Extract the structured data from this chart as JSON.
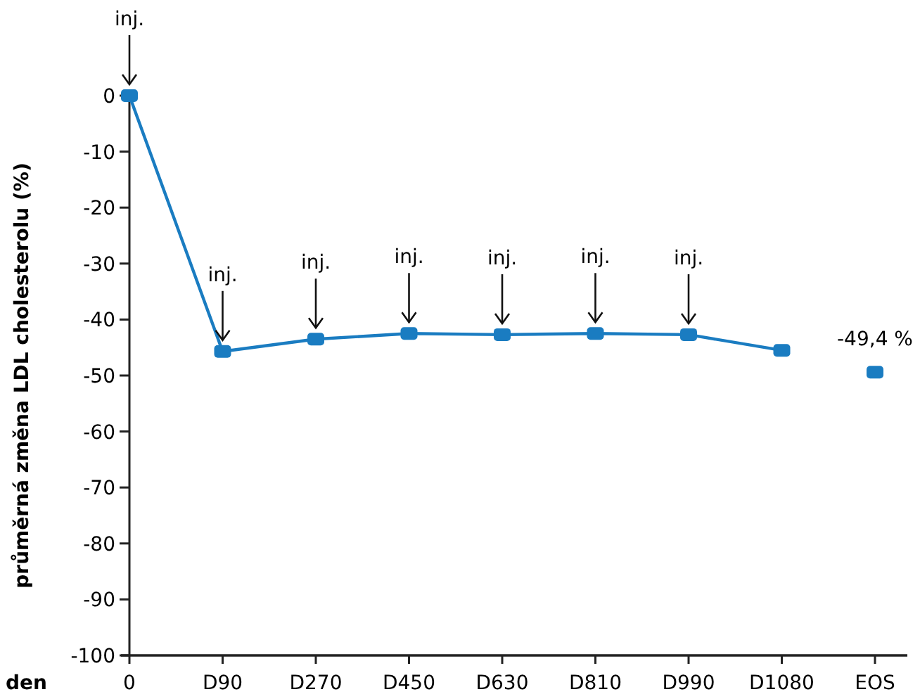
{
  "chart_data": {
    "type": "line",
    "xlabel": "den",
    "ylabel": "průměrná změna LDL cholesterolu (%)",
    "categories": [
      "0",
      "D90",
      "D270",
      "D450",
      "D630",
      "D810",
      "D990",
      "D1080",
      "EOS"
    ],
    "series": [
      {
        "color": "#1a7cc1",
        "values": [
          0,
          -45.7,
          -43.5,
          -42.5,
          -42.7,
          -42.5,
          -42.7,
          -45.5,
          null
        ]
      },
      {
        "type": "scatter",
        "color": "#1a7cc1",
        "values": [
          null,
          null,
          null,
          null,
          null,
          null,
          null,
          null,
          -49.4
        ],
        "value_labels": [
          null,
          null,
          null,
          null,
          null,
          null,
          null,
          null,
          "-49,4 %"
        ]
      }
    ],
    "ylim": [
      -100,
      0
    ],
    "yticks": [
      0,
      -10,
      -20,
      -30,
      -40,
      -50,
      -60,
      -70,
      -80,
      -90,
      -100
    ],
    "grid": false,
    "marker": "square",
    "line_style": "solid",
    "annotations": [
      {
        "text": "inj.",
        "x": "0",
        "y": 0
      },
      {
        "text": "inj.",
        "x": "D90",
        "y": -45.7
      },
      {
        "text": "inj.",
        "x": "D270",
        "y": -43.5
      },
      {
        "text": "inj.",
        "x": "D450",
        "y": -42.5
      },
      {
        "text": "inj.",
        "x": "D630",
        "y": -42.7
      },
      {
        "text": "inj.",
        "x": "D810",
        "y": -42.5
      },
      {
        "text": "inj.",
        "x": "D990",
        "y": -42.7
      }
    ]
  }
}
